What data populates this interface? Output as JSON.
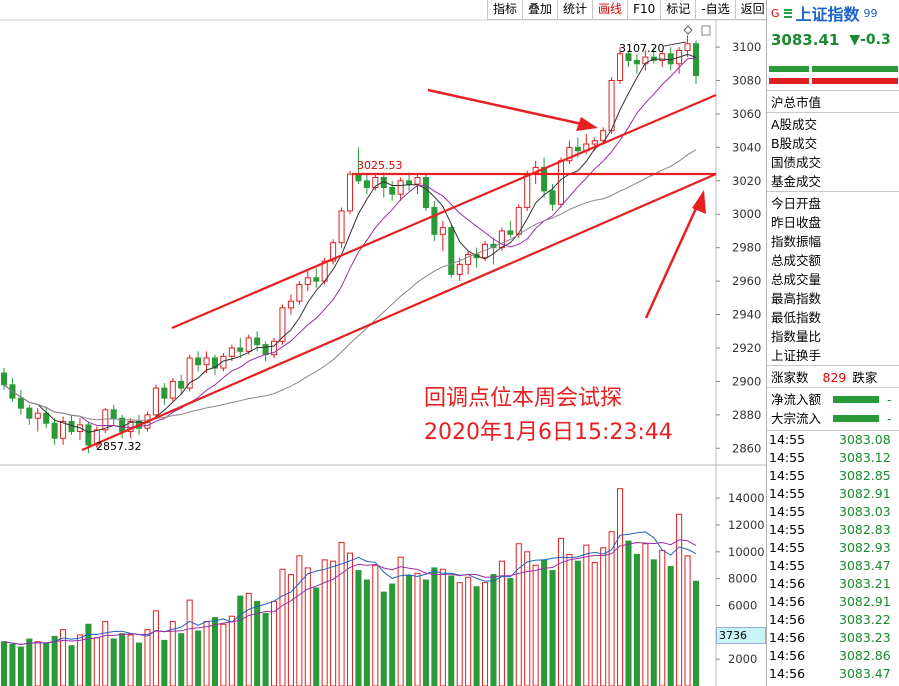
{
  "toolbar": {
    "items": [
      "指标",
      "叠加",
      "统计",
      "画线",
      "F10",
      "标记",
      "-自选",
      "返回"
    ],
    "active_index": 3
  },
  "header": {
    "tag": "G",
    "index_name": "上证指数",
    "index_code_fragment": "99",
    "price": "3083.41",
    "change": "▼-0.3"
  },
  "stats": {
    "cap_label": "沪总市值",
    "trade_labels": [
      "A股成交",
      "B股成交",
      "国债成交",
      "基金成交"
    ],
    "quote_labels": [
      "今日开盘",
      "昨日收盘",
      "指数振幅",
      "总成交额",
      "总成交量",
      "最高指数",
      "最低指数",
      "指数量比",
      "上证换手"
    ],
    "rise_label": "涨家数",
    "rise_value": "829",
    "fall_label_fragment": "跌家",
    "net_inflow_label": "净流入额",
    "block_inflow_label": "大宗流入",
    "flow_dash": "-"
  },
  "ticks": [
    {
      "time": "14:55",
      "price": "3083.08"
    },
    {
      "time": "14:55",
      "price": "3083.12"
    },
    {
      "time": "14:55",
      "price": "3082.85"
    },
    {
      "time": "14:55",
      "price": "3082.91"
    },
    {
      "time": "14:55",
      "price": "3083.03"
    },
    {
      "time": "14:55",
      "price": "3082.83"
    },
    {
      "time": "14:55",
      "price": "3082.93"
    },
    {
      "time": "14:55",
      "price": "3083.47"
    },
    {
      "time": "14:56",
      "price": "3083.21"
    },
    {
      "time": "14:56",
      "price": "3082.91"
    },
    {
      "time": "14:56",
      "price": "3083.22"
    },
    {
      "time": "14:56",
      "price": "3083.23"
    },
    {
      "time": "14:56",
      "price": "3082.86"
    },
    {
      "time": "14:56",
      "price": "3083.47"
    }
  ],
  "annotation": {
    "line1": "回调点位本周会试探",
    "line2": "2020年1月6日15:23:44"
  },
  "price_labels": {
    "high": "3107.20",
    "mid": "3025.53",
    "low": "2857.32"
  },
  "volume_current": "3736",
  "colors": {
    "up": "#e02020",
    "down": "#2a9a38",
    "accent_blue": "#1a63c8",
    "annotation": "#e62020"
  },
  "chart_data": {
    "type": "candlestick",
    "y_axis_ticks": [
      3100,
      3080,
      3060,
      3040,
      3020,
      3000,
      2980,
      2960,
      2940,
      2920,
      2900,
      2880,
      2860
    ],
    "volume_axis_ticks": [
      14000,
      12000,
      10000,
      8000,
      6000,
      2000
    ],
    "ylim": [
      2850,
      3115
    ],
    "volume_ylim": [
      0,
      15500
    ],
    "candles": [
      [
        2905,
        2908,
        2895,
        2898,
        3300
      ],
      [
        2898,
        2902,
        2888,
        2890,
        3100
      ],
      [
        2890,
        2895,
        2880,
        2884,
        2900
      ],
      [
        2884,
        2886,
        2874,
        2878,
        3500
      ],
      [
        2878,
        2884,
        2870,
        2881,
        3300
      ],
      [
        2881,
        2885,
        2872,
        2875,
        3200
      ],
      [
        2875,
        2878,
        2862,
        2866,
        3700
      ],
      [
        2866,
        2879,
        2862,
        2876,
        4200
      ],
      [
        2876,
        2880,
        2868,
        2870,
        3000
      ],
      [
        2870,
        2878,
        2865,
        2874,
        3800
      ],
      [
        2874,
        2876,
        2857,
        2862,
        4600
      ],
      [
        2862,
        2873,
        2860,
        2871,
        3600
      ],
      [
        2871,
        2884,
        2869,
        2883,
        4800
      ],
      [
        2883,
        2886,
        2874,
        2878,
        3500
      ],
      [
        2878,
        2880,
        2866,
        2870,
        3900
      ],
      [
        2870,
        2878,
        2866,
        2876,
        3800
      ],
      [
        2876,
        2880,
        2868,
        2872,
        3200
      ],
      [
        2872,
        2882,
        2870,
        2880,
        4200
      ],
      [
        2880,
        2898,
        2878,
        2896,
        5600
      ],
      [
        2896,
        2899,
        2886,
        2890,
        3400
      ],
      [
        2890,
        2902,
        2888,
        2900,
        4800
      ],
      [
        2900,
        2904,
        2892,
        2896,
        3900
      ],
      [
        2896,
        2916,
        2894,
        2914,
        6400
      ],
      [
        2914,
        2918,
        2906,
        2910,
        4100
      ],
      [
        2910,
        2918,
        2905,
        2914,
        4800
      ],
      [
        2914,
        2916,
        2904,
        2908,
        5100
      ],
      [
        2908,
        2917,
        2906,
        2915,
        4600
      ],
      [
        2915,
        2922,
        2912,
        2920,
        5200
      ],
      [
        2920,
        2926,
        2914,
        2918,
        6700
      ],
      [
        2918,
        2928,
        2916,
        2926,
        6900
      ],
      [
        2926,
        2930,
        2918,
        2922,
        6300
      ],
      [
        2922,
        2924,
        2912,
        2916,
        5400
      ],
      [
        2916,
        2926,
        2914,
        2924,
        6300
      ],
      [
        2924,
        2946,
        2922,
        2944,
        8700
      ],
      [
        2944,
        2952,
        2940,
        2948,
        8300
      ],
      [
        2948,
        2960,
        2946,
        2958,
        9700
      ],
      [
        2958,
        2966,
        2954,
        2962,
        8800
      ],
      [
        2962,
        2968,
        2956,
        2960,
        7300
      ],
      [
        2960,
        2974,
        2958,
        2972,
        9400
      ],
      [
        2972,
        2985,
        2970,
        2983,
        9300
      ],
      [
        2983,
        3004,
        2980,
        3002,
        10700
      ],
      [
        3002,
        3026,
        3000,
        3024,
        9900
      ],
      [
        3024,
        3040,
        3018,
        3020,
        8600
      ],
      [
        3020,
        3024,
        3012,
        3016,
        7900
      ],
      [
        3016,
        3024,
        3014,
        3022,
        9000
      ],
      [
        3022,
        3025,
        3010,
        3016,
        7000
      ],
      [
        3016,
        3020,
        3008,
        3012,
        7600
      ],
      [
        3012,
        3022,
        3008,
        3020,
        9600
      ],
      [
        3020,
        3025,
        3014,
        3018,
        8200
      ],
      [
        3018,
        3024,
        3012,
        3022,
        8400
      ],
      [
        3022,
        3024,
        3002,
        3004,
        7900
      ],
      [
        3004,
        3008,
        2984,
        2988,
        8800
      ],
      [
        2988,
        2996,
        2978,
        2992,
        8700
      ],
      [
        2992,
        2994,
        2962,
        2964,
        8200
      ],
      [
        2964,
        2974,
        2960,
        2970,
        7700
      ],
      [
        2970,
        2978,
        2964,
        2976,
        8100
      ],
      [
        2976,
        2980,
        2968,
        2974,
        7400
      ],
      [
        2974,
        2984,
        2972,
        2982,
        7700
      ],
      [
        2982,
        2986,
        2970,
        2980,
        8300
      ],
      [
        2980,
        2992,
        2978,
        2990,
        9300
      ],
      [
        2990,
        2996,
        2986,
        2988,
        8000
      ],
      [
        2988,
        3006,
        2986,
        3004,
        10600
      ],
      [
        3004,
        3026,
        3002,
        3024,
        10000
      ],
      [
        3024,
        3032,
        3018,
        3028,
        9000
      ],
      [
        3028,
        3034,
        3010,
        3014,
        9400
      ],
      [
        3014,
        3018,
        3002,
        3006,
        8600
      ],
      [
        3006,
        3034,
        3004,
        3032,
        11000
      ],
      [
        3032,
        3044,
        3030,
        3040,
        9800
      ],
      [
        3040,
        3046,
        3034,
        3038,
        9300
      ],
      [
        3038,
        3048,
        3036,
        3042,
        10500
      ],
      [
        3042,
        3046,
        3038,
        3044,
        9200
      ],
      [
        3044,
        3052,
        3042,
        3050,
        10300
      ],
      [
        3050,
        3082,
        3048,
        3080,
        11500
      ],
      [
        3080,
        3100,
        3078,
        3096,
        14700
      ],
      [
        3096,
        3098,
        3088,
        3092,
        10800
      ],
      [
        3092,
        3096,
        3084,
        3090,
        9800
      ],
      [
        3090,
        3098,
        3086,
        3094,
        10600
      ],
      [
        3094,
        3100,
        3090,
        3092,
        9400
      ],
      [
        3092,
        3098,
        3088,
        3096,
        10100
      ],
      [
        3096,
        3100,
        3086,
        3090,
        8900
      ],
      [
        3090,
        3100,
        3084,
        3098,
        12800
      ],
      [
        3098,
        3107,
        3094,
        3102,
        9700
      ],
      [
        3102,
        3104,
        3078,
        3083,
        7800
      ]
    ]
  }
}
